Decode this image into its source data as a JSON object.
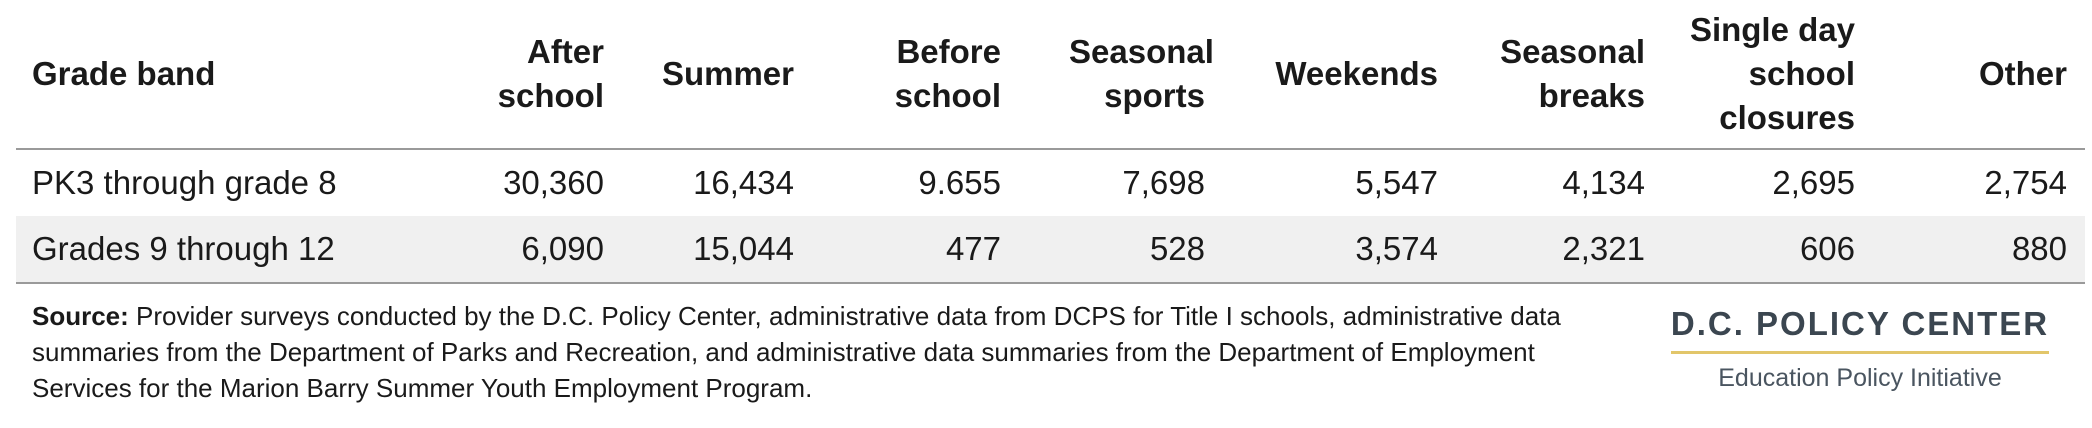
{
  "chart_data": {
    "type": "table",
    "columns": [
      "Grade band",
      "After school",
      "Summer",
      "Before school",
      "Seasonal sports",
      "Weekends",
      "Seasonal breaks",
      "Single day school closures",
      "Other"
    ],
    "rows": [
      [
        "PK3 through grade 8",
        "30,360",
        "16,434",
        "9.655",
        "7,698",
        "5,547",
        "4,134",
        "2,695",
        "2,754"
      ],
      [
        "Grades 9 through 12",
        "6,090",
        "15,044",
        "477",
        "528",
        "3,574",
        "2,321",
        "606",
        "880"
      ]
    ]
  },
  "source": {
    "label": "Source:",
    "text": "Provider surveys conducted by the D.C. Policy Center, administrative data from DCPS for Title I schools, administrative data summaries from the Department of Parks and Recreation, and administrative data summaries from the Department of Employment Services for the Marion Barry Summer Youth Employment Program."
  },
  "brand": {
    "name": "D.C. POLICY CENTER",
    "subtitle": "Education Policy Initiative",
    "accent_color": "#e2c66a"
  }
}
